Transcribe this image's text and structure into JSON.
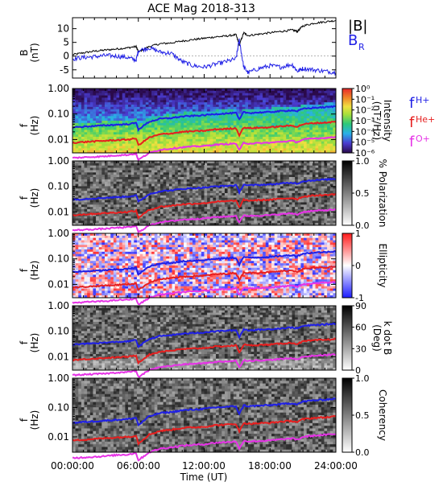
{
  "title": "ACE Mag 2018-313",
  "colors": {
    "black": "#000000",
    "blue": "#1f1fe6",
    "red": "#e61f1f",
    "magenta": "#e633e6"
  },
  "x_axis": {
    "label": "Time (UT)",
    "ticks": [
      "00:00:00",
      "06:00:00",
      "12:00:00",
      "18:00:00",
      "24:00:00"
    ],
    "range_hours": [
      0,
      24
    ]
  },
  "chart_data": [
    {
      "type": "line",
      "ylabel": "B\n(nT)",
      "ylim": [
        -8,
        14
      ],
      "yticks": [
        "-5",
        "0",
        "5",
        "10"
      ],
      "legend": [
        "|B|",
        "B_R"
      ],
      "series": [
        {
          "name": "|B|",
          "color": "black",
          "x": [
            0,
            1,
            2,
            3,
            4,
            5,
            5.8,
            6,
            7,
            8,
            9,
            10,
            11,
            12,
            13,
            14,
            14.9,
            15.2,
            15.6,
            16,
            17,
            18,
            19,
            20,
            20.5,
            21,
            22,
            23,
            24
          ],
          "values": [
            0.5,
            1.2,
            1.8,
            2.2,
            2.6,
            3.0,
            3.5,
            1.5,
            3.5,
            4.5,
            4.8,
            5.5,
            6.0,
            6.5,
            7.0,
            7.3,
            7.8,
            4.0,
            8.5,
            7.5,
            8.0,
            8.5,
            9.0,
            9.5,
            9.0,
            11.0,
            12.0,
            12.5,
            13.0
          ]
        },
        {
          "name": "B_R",
          "color": "blue",
          "x": [
            0,
            1,
            2,
            3,
            4,
            5,
            5.8,
            6,
            7,
            8,
            9,
            10,
            11,
            12,
            13,
            14,
            14.9,
            15.2,
            15.6,
            16,
            17,
            18,
            19,
            20,
            20.5,
            21,
            22,
            23,
            24
          ],
          "values": [
            -1.0,
            -0.5,
            -0.2,
            0.2,
            0.0,
            -0.5,
            -1.5,
            2.0,
            3.0,
            1.5,
            1.0,
            -2.0,
            -3.5,
            -4.0,
            -3.0,
            -2.0,
            -1.0,
            6.0,
            -4.0,
            -6.0,
            -4.5,
            -3.5,
            -4.0,
            -3.0,
            -5.5,
            -4.5,
            -5.0,
            -5.5,
            -6.0
          ]
        }
      ]
    },
    {
      "type": "heatmap",
      "ylabel": "f\n(Hz)",
      "yscale": "log",
      "ylim": [
        0.003,
        1.0
      ],
      "yticks": [
        "1.00",
        "0.10",
        "0.01"
      ],
      "colorbar": {
        "label": "Intensity\n(nT²/Hz)",
        "ticks": [
          "10⁰",
          "10⁻¹",
          "10⁻²",
          "10⁻³",
          "10⁻⁴",
          "10⁻⁵",
          "10⁻⁶"
        ],
        "palette": "rainbow"
      },
      "legend": [
        "f_H+",
        "f_He+",
        "f_O+"
      ]
    },
    {
      "type": "heatmap",
      "ylabel": "f\n(Hz)",
      "yscale": "log",
      "ylim": [
        0.003,
        1.0
      ],
      "yticks": [
        "1.00",
        "0.10",
        "0.01"
      ],
      "colorbar": {
        "label": "% Polarization",
        "ticks": [
          "1.0",
          "0.5",
          "0.0"
        ],
        "palette": "grayscale"
      }
    },
    {
      "type": "heatmap",
      "ylabel": "f\n(Hz)",
      "yscale": "log",
      "ylim": [
        0.003,
        1.0
      ],
      "yticks": [
        "1.00",
        "0.10",
        "0.01"
      ],
      "colorbar": {
        "label": "Ellipticity",
        "ticks": [
          "1",
          "0",
          "-1"
        ],
        "palette": "blue-white-red"
      }
    },
    {
      "type": "heatmap",
      "ylabel": "f\n(Hz)",
      "yscale": "log",
      "ylim": [
        0.003,
        1.0
      ],
      "yticks": [
        "1.00",
        "0.10",
        "0.01"
      ],
      "colorbar": {
        "label": "k dot B\n(Deg)",
        "ticks": [
          "90",
          "60",
          "30",
          "0"
        ],
        "palette": "grayscale"
      }
    },
    {
      "type": "heatmap",
      "ylabel": "f\n(Hz)",
      "yscale": "log",
      "ylim": [
        0.003,
        1.0
      ],
      "yticks": [
        "1.00",
        "0.10",
        "0.01"
      ],
      "colorbar": {
        "label": "Coherency",
        "ticks": [
          "1.0",
          "0.5",
          "0.0"
        ],
        "palette": "grayscale"
      }
    }
  ],
  "gyrofrequencies": {
    "x": [
      0,
      1,
      2,
      3,
      4,
      5,
      5.8,
      6,
      7,
      8,
      9,
      10,
      11,
      12,
      13,
      14,
      14.9,
      15.2,
      15.6,
      16,
      17,
      18,
      19,
      20,
      20.5,
      21,
      22,
      23,
      24
    ],
    "f_H": [
      0.03,
      0.032,
      0.034,
      0.036,
      0.038,
      0.04,
      0.045,
      0.025,
      0.05,
      0.065,
      0.07,
      0.08,
      0.085,
      0.09,
      0.1,
      0.105,
      0.11,
      0.06,
      0.12,
      0.11,
      0.115,
      0.12,
      0.13,
      0.14,
      0.13,
      0.16,
      0.175,
      0.185,
      0.2
    ],
    "f_He": [
      0.0075,
      0.008,
      0.0085,
      0.009,
      0.0095,
      0.01,
      0.011,
      0.006,
      0.012,
      0.016,
      0.0175,
      0.02,
      0.021,
      0.022,
      0.025,
      0.026,
      0.028,
      0.015,
      0.03,
      0.028,
      0.029,
      0.03,
      0.033,
      0.035,
      0.032,
      0.04,
      0.044,
      0.046,
      0.05
    ],
    "f_O": [
      0.0019,
      0.002,
      0.0021,
      0.0022,
      0.0024,
      0.0025,
      0.0028,
      0.0016,
      0.003,
      0.004,
      0.0044,
      0.005,
      0.0053,
      0.0056,
      0.0063,
      0.0066,
      0.007,
      0.0038,
      0.0075,
      0.007,
      0.0072,
      0.0075,
      0.0082,
      0.0088,
      0.008,
      0.01,
      0.011,
      0.0116,
      0.0125
    ]
  }
}
